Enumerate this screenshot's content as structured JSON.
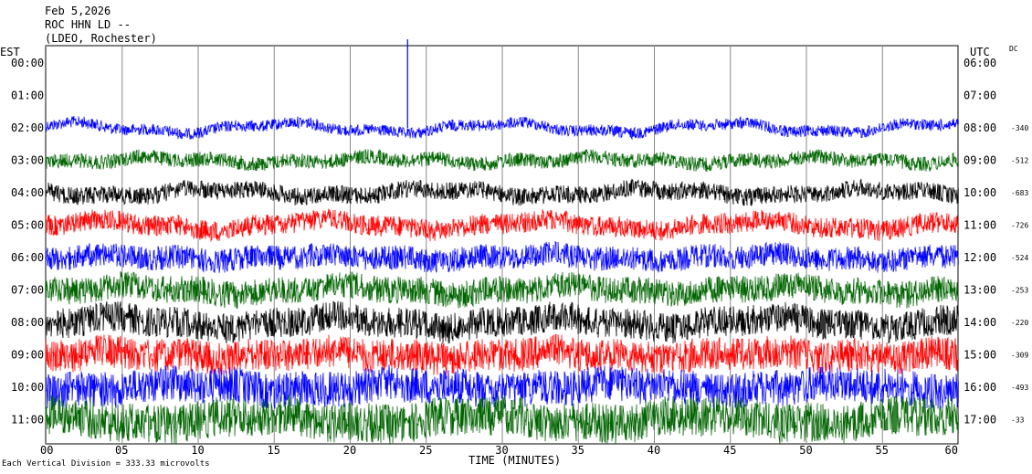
{
  "header": {
    "date": "Feb 5,2026",
    "station": "ROC HHN LD --",
    "network": "(LDEO, Rochester)"
  },
  "chart_data": {
    "type": "line",
    "title": "Feb 5,2026",
    "subtitle": "ROC HHN LD --",
    "xlabel": "TIME (MINUTES)",
    "x_ticks": [
      "00",
      "05",
      "10",
      "15",
      "20",
      "25",
      "30",
      "35",
      "40",
      "45",
      "50",
      "55",
      "60"
    ],
    "xlim": [
      0,
      60
    ],
    "left_axis_title": "EST",
    "right_axis_title": "UTC",
    "dc_header": "DC",
    "rows": [
      {
        "est": "00:00",
        "utc": "06:00",
        "dc": "",
        "color": "#0000ff",
        "active": false
      },
      {
        "est": "01:00",
        "utc": "07:00",
        "dc": "",
        "color": "#006400",
        "active": false
      },
      {
        "est": "02:00",
        "utc": "08:00",
        "dc": "-340",
        "color": "#0000ff",
        "active": true
      },
      {
        "est": "03:00",
        "utc": "09:00",
        "dc": "-512",
        "color": "#006400",
        "active": true
      },
      {
        "est": "04:00",
        "utc": "10:00",
        "dc": "-683",
        "color": "#000000",
        "active": true
      },
      {
        "est": "05:00",
        "utc": "11:00",
        "dc": "-726",
        "color": "#ff0000",
        "active": true
      },
      {
        "est": "06:00",
        "utc": "12:00",
        "dc": "-524",
        "color": "#0000ff",
        "active": true
      },
      {
        "est": "07:00",
        "utc": "13:00",
        "dc": "-253",
        "color": "#006400",
        "active": true
      },
      {
        "est": "08:00",
        "utc": "14:00",
        "dc": "-220",
        "color": "#000000",
        "active": true
      },
      {
        "est": "09:00",
        "utc": "15:00",
        "dc": "-309",
        "color": "#ff0000",
        "active": true
      },
      {
        "est": "10:00",
        "utc": "16:00",
        "dc": "-493",
        "color": "#0000ff",
        "active": true
      },
      {
        "est": "11:00",
        "utc": "17:00",
        "dc": "-33",
        "color": "#006400",
        "active": true
      }
    ],
    "grid": true,
    "footer": "Each Vertical Division = 333.33 microvolts"
  }
}
